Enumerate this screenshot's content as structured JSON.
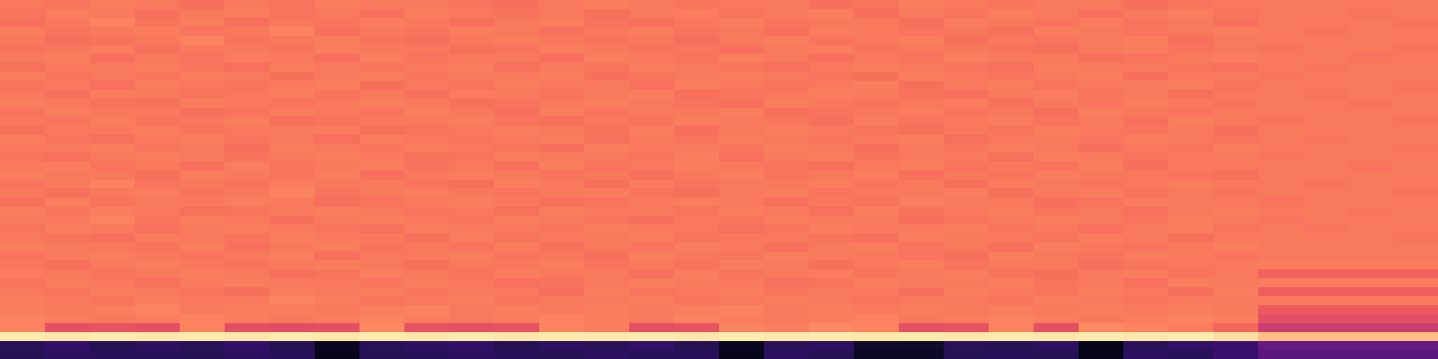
{
  "chart_data": {
    "type": "heatmap",
    "tick_labels": false,
    "color": "magma",
    "color_range": [
      0,
      1
    ],
    "cells": [
      [
        0.72,
        0.71,
        0.73,
        0.72,
        0.7,
        0.72,
        0.71,
        0.73,
        0.72,
        0.72,
        0.71,
        0.7,
        0.72,
        0.73,
        0.72,
        0.71,
        0.72,
        0.72,
        0.7,
        0.71,
        0.73,
        0.72,
        0.71,
        0.72,
        0.72,
        0.7,
        0.71,
        0.72,
        0.72,
        0.72,
        0.72,
        0.72
      ],
      [
        0.71,
        0.73,
        0.72,
        0.7,
        0.72,
        0.73,
        0.71,
        0.72,
        0.7,
        0.73,
        0.72,
        0.71,
        0.72,
        0.7,
        0.72,
        0.73,
        0.71,
        0.72,
        0.73,
        0.7,
        0.72,
        0.71,
        0.73,
        0.72,
        0.7,
        0.72,
        0.73,
        0.71,
        0.72,
        0.72,
        0.71,
        0.72
      ],
      [
        0.7,
        0.72,
        0.74,
        0.71,
        0.73,
        0.7,
        0.72,
        0.71,
        0.73,
        0.72,
        0.7,
        0.72,
        0.73,
        0.71,
        0.7,
        0.72,
        0.73,
        0.71,
        0.72,
        0.72,
        0.7,
        0.73,
        0.72,
        0.71,
        0.73,
        0.71,
        0.72,
        0.7,
        0.72,
        0.72,
        0.72,
        0.71
      ],
      [
        0.73,
        0.71,
        0.72,
        0.73,
        0.71,
        0.72,
        0.74,
        0.7,
        0.72,
        0.71,
        0.73,
        0.72,
        0.7,
        0.72,
        0.73,
        0.71,
        0.72,
        0.7,
        0.73,
        0.72,
        0.71,
        0.72,
        0.7,
        0.73,
        0.72,
        0.71,
        0.72,
        0.73,
        0.72,
        0.71,
        0.72,
        0.72
      ],
      [
        0.72,
        0.7,
        0.71,
        0.72,
        0.74,
        0.71,
        0.72,
        0.73,
        0.71,
        0.7,
        0.72,
        0.73,
        0.72,
        0.71,
        0.72,
        0.7,
        0.72,
        0.73,
        0.71,
        0.72,
        0.73,
        0.7,
        0.72,
        0.71,
        0.72,
        0.73,
        0.7,
        0.72,
        0.72,
        0.72,
        0.72,
        0.72
      ],
      [
        0.71,
        0.72,
        0.73,
        0.7,
        0.72,
        0.72,
        0.71,
        0.73,
        0.72,
        0.72,
        0.7,
        0.71,
        0.73,
        0.72,
        0.71,
        0.72,
        0.7,
        0.72,
        0.73,
        0.71,
        0.72,
        0.72,
        0.71,
        0.7,
        0.72,
        0.73,
        0.71,
        0.72,
        0.71,
        0.72,
        0.72,
        0.71
      ],
      [
        0.72,
        0.73,
        0.7,
        0.72,
        0.71,
        0.73,
        0.72,
        0.7,
        0.73,
        0.71,
        0.72,
        0.72,
        0.7,
        0.73,
        0.72,
        0.71,
        0.73,
        0.72,
        0.7,
        0.72,
        0.71,
        0.73,
        0.72,
        0.72,
        0.7,
        0.71,
        0.72,
        0.73,
        0.72,
        0.72,
        0.71,
        0.72
      ],
      [
        0.7,
        0.72,
        0.72,
        0.73,
        0.71,
        0.7,
        0.73,
        0.72,
        0.71,
        0.72,
        0.73,
        0.7,
        0.72,
        0.71,
        0.73,
        0.72,
        0.71,
        0.7,
        0.72,
        0.73,
        0.72,
        0.71,
        0.7,
        0.73,
        0.72,
        0.72,
        0.71,
        0.7,
        0.72,
        0.71,
        0.72,
        0.72
      ],
      [
        0.73,
        0.71,
        0.72,
        0.71,
        0.73,
        0.72,
        0.7,
        0.72,
        0.73,
        0.71,
        0.72,
        0.72,
        0.73,
        0.7,
        0.71,
        0.72,
        0.73,
        0.72,
        0.71,
        0.7,
        0.73,
        0.72,
        0.71,
        0.72,
        0.73,
        0.7,
        0.72,
        0.72,
        0.71,
        0.72,
        0.72,
        0.72
      ],
      [
        0.71,
        0.72,
        0.7,
        0.73,
        0.72,
        0.71,
        0.72,
        0.73,
        0.7,
        0.72,
        0.71,
        0.73,
        0.72,
        0.72,
        0.7,
        0.73,
        0.72,
        0.71,
        0.72,
        0.73,
        0.7,
        0.72,
        0.73,
        0.71,
        0.72,
        0.72,
        0.73,
        0.71,
        0.72,
        0.72,
        0.72,
        0.71
      ],
      [
        0.72,
        0.7,
        0.73,
        0.72,
        0.71,
        0.72,
        0.73,
        0.71,
        0.72,
        0.7,
        0.73,
        0.72,
        0.71,
        0.72,
        0.73,
        0.7,
        0.71,
        0.72,
        0.73,
        0.72,
        0.71,
        0.7,
        0.72,
        0.73,
        0.71,
        0.72,
        0.7,
        0.72,
        0.72,
        0.71,
        0.72,
        0.72
      ],
      [
        0.73,
        0.72,
        0.71,
        0.7,
        0.73,
        0.72,
        0.71,
        0.72,
        0.73,
        0.72,
        0.7,
        0.71,
        0.72,
        0.73,
        0.72,
        0.71,
        0.7,
        0.73,
        0.72,
        0.71,
        0.72,
        0.73,
        0.7,
        0.72,
        0.71,
        0.73,
        0.72,
        0.71,
        0.72,
        0.72,
        0.71,
        0.72
      ],
      [
        0.71,
        0.73,
        0.72,
        0.72,
        0.7,
        0.71,
        0.73,
        0.72,
        0.71,
        0.73,
        0.72,
        0.7,
        0.73,
        0.71,
        0.72,
        0.72,
        0.73,
        0.7,
        0.71,
        0.72,
        0.73,
        0.71,
        0.72,
        0.7,
        0.73,
        0.72,
        0.71,
        0.72,
        0.72,
        0.72,
        0.72,
        0.72
      ],
      [
        0.72,
        0.71,
        0.73,
        0.71,
        0.72,
        0.73,
        0.7,
        0.71,
        0.72,
        0.72,
        0.73,
        0.71,
        0.7,
        0.72,
        0.71,
        0.73,
        0.72,
        0.72,
        0.7,
        0.73,
        0.71,
        0.72,
        0.73,
        0.71,
        0.72,
        0.7,
        0.73,
        0.72,
        0.71,
        0.72,
        0.72,
        0.71
      ],
      [
        0.7,
        0.72,
        0.72,
        0.73,
        0.71,
        0.72,
        0.72,
        0.73,
        0.7,
        0.71,
        0.72,
        0.73,
        0.72,
        0.71,
        0.73,
        0.7,
        0.72,
        0.73,
        0.72,
        0.71,
        0.7,
        0.72,
        0.71,
        0.73,
        0.72,
        0.71,
        0.72,
        0.7,
        0.72,
        0.72,
        0.72,
        0.72
      ],
      [
        0.73,
        0.71,
        0.7,
        0.72,
        0.73,
        0.71,
        0.72,
        0.7,
        0.73,
        0.72,
        0.71,
        0.72,
        0.73,
        0.7,
        0.72,
        0.71,
        0.73,
        0.72,
        0.71,
        0.72,
        0.73,
        0.7,
        0.72,
        0.72,
        0.71,
        0.73,
        0.72,
        0.71,
        0.72,
        0.71,
        0.72,
        0.72
      ],
      [
        0.72,
        0.72,
        0.73,
        0.71,
        0.72,
        0.7,
        0.73,
        0.72,
        0.71,
        0.73,
        0.72,
        0.71,
        0.7,
        0.73,
        0.72,
        0.72,
        0.71,
        0.73,
        0.72,
        0.7,
        0.72,
        0.71,
        0.73,
        0.72,
        0.7,
        0.72,
        0.71,
        0.73,
        0.72,
        0.72,
        0.72,
        0.71
      ],
      [
        0.71,
        0.7,
        0.72,
        0.73,
        0.72,
        0.71,
        0.72,
        0.73,
        0.72,
        0.7,
        0.71,
        0.73,
        0.72,
        0.72,
        0.71,
        0.73,
        0.7,
        0.72,
        0.73,
        0.71,
        0.72,
        0.72,
        0.7,
        0.73,
        0.72,
        0.71,
        0.72,
        0.72,
        0.71,
        0.72,
        0.72,
        0.72
      ],
      [
        0.72,
        0.73,
        0.71,
        0.72,
        0.7,
        0.73,
        0.71,
        0.72,
        0.73,
        0.71,
        0.72,
        0.7,
        0.73,
        0.71,
        0.72,
        0.73,
        0.72,
        0.71,
        0.7,
        0.72,
        0.73,
        0.71,
        0.72,
        0.71,
        0.73,
        0.7,
        0.72,
        0.72,
        0.72,
        0.72,
        0.71,
        0.72
      ],
      [
        0.73,
        0.72,
        0.72,
        0.7,
        0.73,
        0.72,
        0.71,
        0.73,
        0.7,
        0.72,
        0.73,
        0.72,
        0.71,
        0.72,
        0.7,
        0.72,
        0.73,
        0.71,
        0.72,
        0.73,
        0.7,
        0.72,
        0.71,
        0.73,
        0.72,
        0.72,
        0.71,
        0.7,
        0.72,
        0.72,
        0.72,
        0.72
      ],
      [
        0.71,
        0.72,
        0.74,
        0.71,
        0.72,
        0.71,
        0.73,
        0.72,
        0.72,
        0.71,
        0.7,
        0.73,
        0.72,
        0.7,
        0.73,
        0.71,
        0.72,
        0.72,
        0.73,
        0.71,
        0.72,
        0.7,
        0.73,
        0.72,
        0.71,
        0.72,
        0.73,
        0.72,
        0.72,
        0.71,
        0.72,
        0.72
      ],
      [
        0.72,
        0.7,
        0.72,
        0.73,
        0.71,
        0.72,
        0.74,
        0.71,
        0.72,
        0.73,
        0.72,
        0.71,
        0.72,
        0.73,
        0.71,
        0.7,
        0.72,
        0.73,
        0.71,
        0.72,
        0.72,
        0.73,
        0.7,
        0.72,
        0.73,
        0.71,
        0.72,
        0.71,
        0.72,
        0.72,
        0.72,
        0.71
      ],
      [
        0.7,
        0.73,
        0.71,
        0.72,
        0.72,
        0.73,
        0.72,
        0.7,
        0.71,
        0.72,
        0.73,
        0.72,
        0.7,
        0.71,
        0.72,
        0.73,
        0.72,
        0.7,
        0.72,
        0.71,
        0.73,
        0.72,
        0.72,
        0.7,
        0.71,
        0.73,
        0.72,
        0.72,
        0.71,
        0.72,
        0.72,
        0.72
      ],
      [
        0.73,
        0.71,
        0.73,
        0.72,
        0.7,
        0.71,
        0.72,
        0.73,
        0.72,
        0.71,
        0.72,
        0.7,
        0.73,
        0.72,
        0.72,
        0.71,
        0.73,
        0.72,
        0.7,
        0.73,
        0.71,
        0.72,
        0.73,
        0.71,
        0.72,
        0.7,
        0.72,
        0.73,
        0.72,
        0.72,
        0.71,
        0.72
      ],
      [
        0.72,
        0.72,
        0.74,
        0.71,
        0.73,
        0.72,
        0.7,
        0.72,
        0.73,
        0.72,
        0.71,
        0.73,
        0.72,
        0.71,
        0.7,
        0.72,
        0.71,
        0.73,
        0.72,
        0.72,
        0.7,
        0.71,
        0.72,
        0.73,
        0.72,
        0.71,
        0.73,
        0.72,
        0.71,
        0.72,
        0.72,
        0.72
      ],
      [
        0.71,
        0.73,
        0.72,
        0.7,
        0.72,
        0.73,
        0.72,
        0.71,
        0.7,
        0.73,
        0.72,
        0.72,
        0.71,
        0.73,
        0.72,
        0.72,
        0.7,
        0.71,
        0.73,
        0.72,
        0.72,
        0.73,
        0.71,
        0.72,
        0.7,
        0.72,
        0.73,
        0.71,
        0.72,
        0.71,
        0.72,
        0.72
      ],
      [
        0.72,
        0.71,
        0.7,
        0.73,
        0.72,
        0.71,
        0.73,
        0.72,
        0.72,
        0.7,
        0.73,
        0.71,
        0.72,
        0.72,
        0.73,
        0.71,
        0.72,
        0.72,
        0.71,
        0.7,
        0.73,
        0.72,
        0.72,
        0.71,
        0.73,
        0.72,
        0.7,
        0.72,
        0.72,
        0.72,
        0.72,
        0.71
      ],
      [
        0.73,
        0.72,
        0.72,
        0.71,
        0.73,
        0.7,
        0.72,
        0.73,
        0.71,
        0.72,
        0.71,
        0.73,
        0.7,
        0.72,
        0.71,
        0.73,
        0.72,
        0.7,
        0.72,
        0.73,
        0.71,
        0.72,
        0.7,
        0.73,
        0.72,
        0.71,
        0.72,
        0.73,
        0.72,
        0.72,
        0.72,
        0.72
      ],
      [
        0.71,
        0.72,
        0.73,
        0.72,
        0.71,
        0.72,
        0.73,
        0.7,
        0.72,
        0.72,
        0.73,
        0.71,
        0.72,
        0.7,
        0.73,
        0.72,
        0.71,
        0.73,
        0.72,
        0.72,
        0.71,
        0.7,
        0.73,
        0.72,
        0.71,
        0.73,
        0.72,
        0.71,
        0.72,
        0.72,
        0.72,
        0.72
      ],
      [
        0.72,
        0.7,
        0.72,
        0.73,
        0.72,
        0.71,
        0.72,
        0.73,
        0.72,
        0.7,
        0.72,
        0.72,
        0.73,
        0.71,
        0.72,
        0.71,
        0.73,
        0.72,
        0.7,
        0.72,
        0.73,
        0.71,
        0.72,
        0.72,
        0.7,
        0.71,
        0.72,
        0.72,
        0.73,
        0.73,
        0.73,
        0.73
      ],
      [
        0.73,
        0.72,
        0.71,
        0.72,
        0.73,
        0.72,
        0.7,
        0.71,
        0.73,
        0.72,
        0.71,
        0.73,
        0.72,
        0.72,
        0.7,
        0.73,
        0.71,
        0.72,
        0.73,
        0.71,
        0.72,
        0.73,
        0.71,
        0.7,
        0.72,
        0.73,
        0.71,
        0.72,
        0.67,
        0.67,
        0.67,
        0.67
      ],
      [
        0.71,
        0.73,
        0.72,
        0.7,
        0.72,
        0.73,
        0.72,
        0.72,
        0.71,
        0.73,
        0.72,
        0.7,
        0.71,
        0.72,
        0.73,
        0.72,
        0.72,
        0.7,
        0.71,
        0.73,
        0.72,
        0.72,
        0.73,
        0.71,
        0.72,
        0.7,
        0.73,
        0.72,
        0.73,
        0.73,
        0.73,
        0.73
      ],
      [
        0.72,
        0.71,
        0.73,
        0.72,
        0.71,
        0.7,
        0.73,
        0.72,
        0.73,
        0.71,
        0.72,
        0.72,
        0.7,
        0.73,
        0.71,
        0.72,
        0.73,
        0.71,
        0.72,
        0.72,
        0.7,
        0.73,
        0.72,
        0.71,
        0.73,
        0.72,
        0.7,
        0.73,
        0.66,
        0.66,
        0.66,
        0.66
      ],
      [
        0.73,
        0.72,
        0.71,
        0.73,
        0.72,
        0.72,
        0.74,
        0.73,
        0.71,
        0.72,
        0.73,
        0.71,
        0.72,
        0.72,
        0.73,
        0.71,
        0.72,
        0.73,
        0.72,
        0.71,
        0.72,
        0.72,
        0.71,
        0.73,
        0.72,
        0.71,
        0.72,
        0.72,
        0.72,
        0.72,
        0.72,
        0.72
      ],
      [
        0.73,
        0.72,
        0.73,
        0.74,
        0.72,
        0.73,
        0.73,
        0.72,
        0.73,
        0.74,
        0.72,
        0.73,
        0.72,
        0.73,
        0.72,
        0.73,
        0.74,
        0.72,
        0.73,
        0.72,
        0.73,
        0.72,
        0.73,
        0.72,
        0.73,
        0.72,
        0.73,
        0.72,
        0.65,
        0.65,
        0.65,
        0.65
      ],
      [
        0.74,
        0.73,
        0.72,
        0.73,
        0.74,
        0.73,
        0.72,
        0.73,
        0.74,
        0.73,
        0.72,
        0.73,
        0.74,
        0.73,
        0.72,
        0.74,
        0.73,
        0.72,
        0.73,
        0.74,
        0.72,
        0.73,
        0.74,
        0.73,
        0.72,
        0.73,
        0.74,
        0.73,
        0.62,
        0.62,
        0.62,
        0.62
      ],
      [
        0.74,
        0.62,
        0.63,
        0.62,
        0.74,
        0.62,
        0.61,
        0.62,
        0.75,
        0.63,
        0.62,
        0.63,
        0.74,
        0.73,
        0.62,
        0.63,
        0.74,
        0.73,
        0.75,
        0.74,
        0.62,
        0.63,
        0.74,
        0.62,
        0.75,
        0.74,
        0.73,
        0.68,
        0.55,
        0.55,
        0.55,
        0.55
      ],
      [
        0.96,
        0.95,
        0.96,
        0.95,
        0.96,
        0.95,
        0.96,
        0.95,
        0.96,
        0.95,
        0.96,
        0.95,
        0.96,
        0.95,
        0.96,
        0.95,
        0.96,
        0.95,
        0.96,
        0.95,
        0.96,
        0.95,
        0.96,
        0.95,
        0.96,
        0.95,
        0.96,
        0.93,
        0.86,
        0.86,
        0.86,
        0.86
      ],
      [
        0.16,
        0.18,
        0.15,
        0.17,
        0.16,
        0.18,
        0.15,
        0.06,
        0.16,
        0.17,
        0.18,
        0.15,
        0.17,
        0.16,
        0.18,
        0.15,
        0.06,
        0.16,
        0.17,
        0.08,
        0.08,
        0.16,
        0.15,
        0.17,
        0.05,
        0.16,
        0.18,
        0.2,
        0.3,
        0.3,
        0.3,
        0.3
      ],
      [
        0.15,
        0.17,
        0.16,
        0.16,
        0.15,
        0.17,
        0.16,
        0.05,
        0.15,
        0.16,
        0.17,
        0.16,
        0.15,
        0.17,
        0.16,
        0.16,
        0.05,
        0.17,
        0.15,
        0.07,
        0.07,
        0.15,
        0.16,
        0.15,
        0.05,
        0.17,
        0.16,
        0.19,
        0.28,
        0.28,
        0.28,
        0.28
      ]
    ]
  }
}
